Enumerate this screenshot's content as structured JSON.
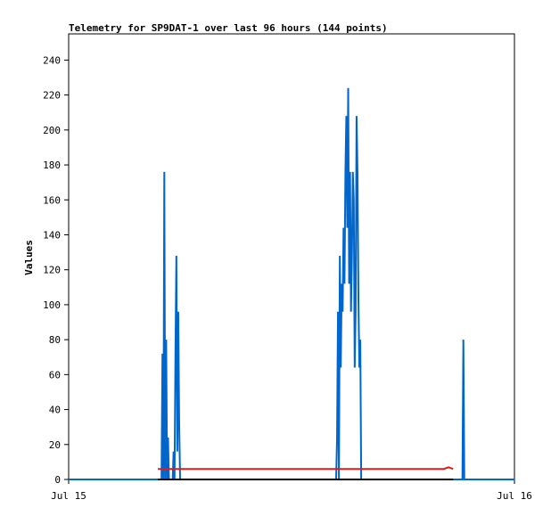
{
  "chart_data": {
    "type": "line",
    "title": "Telemetry for SP9DAT-1 over last 96 hours (144 points)",
    "xlabel": "",
    "ylabel": "Values",
    "x_tick_labels": [
      "Jul 15",
      "Jul 16"
    ],
    "xlim": [
      "Jul 15",
      "Jul 16"
    ],
    "ylim": [
      0,
      255
    ],
    "y_ticks": [
      0,
      20,
      40,
      60,
      80,
      100,
      120,
      140,
      160,
      180,
      200,
      220,
      240
    ],
    "grid": false,
    "legend": "none",
    "x_unit": "hours since Jul 15 00:00",
    "series": [
      {
        "name": "",
        "color": "#0066cc",
        "x": [
          0,
          5.0,
          5.05,
          5.1,
          5.15,
          5.2,
          5.25,
          5.3,
          5.35,
          5.4,
          5.45,
          5.5,
          5.55,
          5.6,
          5.65,
          5.7,
          5.75,
          5.8,
          5.85,
          5.9,
          5.95,
          6.0,
          6.05,
          6.1,
          6.15,
          6.2,
          6.25,
          14.4,
          14.45,
          14.5,
          14.55,
          14.6,
          14.65,
          14.7,
          14.75,
          14.8,
          14.85,
          14.9,
          14.95,
          15.0,
          15.05,
          15.1,
          15.15,
          15.2,
          15.25,
          15.3,
          15.35,
          15.4,
          15.45,
          15.5,
          15.55,
          15.6,
          15.65,
          15.7,
          15.75,
          15.8,
          15.85,
          15.9,
          15.95,
          16.0,
          16.05,
          16.1,
          16.15,
          16.2,
          16.25,
          16.3,
          16.35,
          16.4,
          16.45,
          16.5,
          16.55,
          16.6,
          16.65,
          16.7,
          16.75,
          16.8,
          16.85,
          16.9,
          16.95,
          17.0,
          21.2,
          21.25,
          21.3,
          21.35,
          21.4,
          24
        ],
        "y": [
          0,
          0,
          72,
          0,
          176,
          0,
          80,
          0,
          24,
          0,
          0,
          0,
          0,
          0,
          16,
          0,
          72,
          128,
          16,
          96,
          32,
          0,
          0,
          0,
          0,
          0,
          0,
          0,
          24,
          96,
          0,
          128,
          64,
          112,
          96,
          144,
          112,
          176,
          208,
          144,
          224,
          112,
          176,
          96,
          128,
          176,
          160,
          64,
          96,
          208,
          176,
          104,
          64,
          80,
          0,
          0,
          0,
          0,
          0,
          0,
          0,
          0,
          0,
          0,
          0,
          0,
          0,
          0,
          0,
          0,
          0,
          0,
          0,
          0,
          0,
          0,
          0,
          0,
          0,
          0,
          0,
          80,
          0,
          0,
          0,
          0
        ]
      },
      {
        "name": "",
        "color": "#e31a1c",
        "x": [
          4.8,
          20.2,
          20.45,
          20.7
        ],
        "y": [
          6,
          6,
          7,
          6
        ]
      },
      {
        "name": "",
        "color": "#000000",
        "x": [
          4.8,
          20.7
        ],
        "y": [
          0,
          0
        ]
      }
    ]
  }
}
